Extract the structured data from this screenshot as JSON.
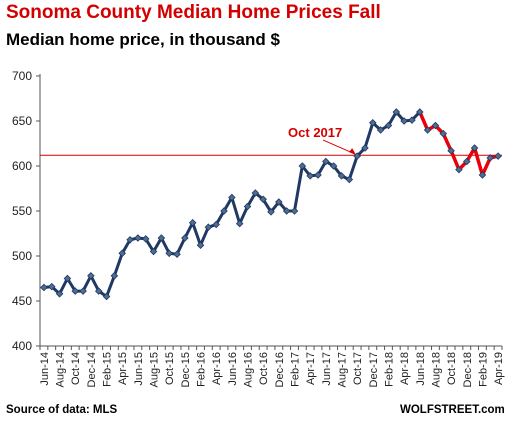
{
  "header": {
    "title": "Sonoma County Median Home Prices Fall",
    "subtitle": "Median home price, in thousand $"
  },
  "footer": {
    "source": "Source of data: MLS",
    "brand": "WOLFSTREET.com"
  },
  "chart_data": {
    "type": "line",
    "title": "Sonoma County Median Home Prices Fall",
    "subtitle": "Median home price, in thousand $",
    "ylim": [
      400,
      700
    ],
    "yticks": [
      400,
      450,
      500,
      550,
      600,
      650,
      700
    ],
    "x": [
      "Jun-14",
      "Jul-14",
      "Aug-14",
      "Sep-14",
      "Oct-14",
      "Nov-14",
      "Dec-14",
      "Jan-15",
      "Feb-15",
      "Mar-15",
      "Apr-15",
      "May-15",
      "Jun-15",
      "Jul-15",
      "Aug-15",
      "Sep-15",
      "Oct-15",
      "Nov-15",
      "Dec-15",
      "Jan-16",
      "Feb-16",
      "Mar-16",
      "Apr-16",
      "May-16",
      "Jun-16",
      "Jul-16",
      "Aug-16",
      "Sep-16",
      "Oct-16",
      "Nov-16",
      "Dec-16",
      "Jan-17",
      "Feb-17",
      "Mar-17",
      "Apr-17",
      "May-17",
      "Jun-17",
      "Jul-17",
      "Aug-17",
      "Sep-17",
      "Oct-17",
      "Nov-17",
      "Dec-17",
      "Jan-18",
      "Feb-18",
      "Mar-18",
      "Apr-18",
      "May-18",
      "Jun-18",
      "Jul-18",
      "Aug-18",
      "Sep-18",
      "Oct-18",
      "Nov-18",
      "Dec-18",
      "Jan-19",
      "Feb-19",
      "Mar-19",
      "Apr-19"
    ],
    "x_tick_labels": [
      "Jun-14",
      "Aug-14",
      "Oct-14",
      "Dec-14",
      "Feb-15",
      "Apr-15",
      "Jun-15",
      "Aug-15",
      "Oct-15",
      "Dec-15",
      "Feb-16",
      "Apr-16",
      "Jun-16",
      "Aug-16",
      "Oct-16",
      "Dec-16",
      "Feb-17",
      "Apr-17",
      "Jun-17",
      "Aug-17",
      "Oct-17",
      "Dec-17",
      "Feb-18",
      "Apr-18",
      "Jun-18",
      "Aug-18",
      "Oct-18",
      "Dec-18",
      "Feb-19",
      "Apr-19"
    ],
    "series": [
      {
        "values": [
          465,
          466,
          458,
          475,
          461,
          461,
          478,
          461,
          455,
          478,
          503,
          518,
          520,
          519,
          505,
          520,
          503,
          502,
          520,
          537,
          512,
          532,
          535,
          550,
          565,
          536,
          555,
          570,
          563,
          549,
          560,
          550,
          550,
          600,
          589,
          590,
          605,
          600,
          589,
          585,
          611,
          620,
          648,
          640,
          645,
          660,
          650,
          651,
          660,
          640,
          645,
          636,
          617,
          596,
          605,
          620,
          590,
          609,
          611
        ],
        "color": "#1f3864",
        "highlight_color": "#e8000b",
        "highlight_from": "Jun-18"
      }
    ],
    "reference_line": {
      "value": 612,
      "color": "#d40000"
    },
    "annotations": [
      {
        "text": "Oct 2017",
        "x": "Oct-17"
      }
    ],
    "grid": false
  }
}
